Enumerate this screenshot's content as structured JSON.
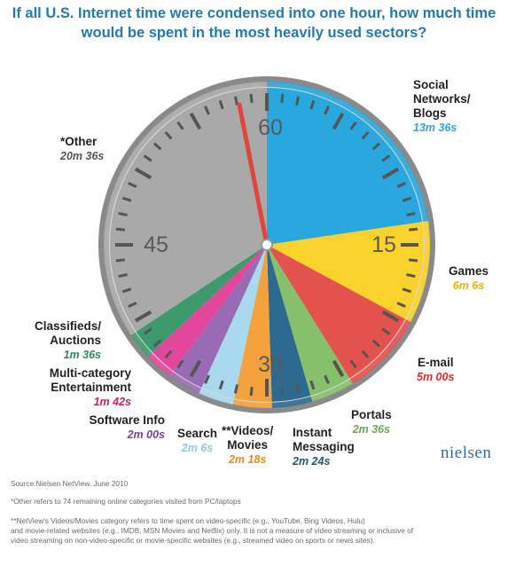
{
  "title_line1": "If all U.S. Internet time were condensed into one hour, how much time",
  "title_line2": "would be spent in the most heavily used sectors?",
  "chart_data": {
    "type": "pie",
    "unit": "minutes",
    "dial_labels": [
      "60",
      "15",
      "30",
      "45"
    ],
    "slices": [
      {
        "name": "Social Networks/ Blogs",
        "value": 13.6,
        "value_label": "13m 36s",
        "color": "#29a8e0"
      },
      {
        "name": "Games",
        "value": 6.1,
        "value_label": "6m 6s",
        "color": "#f9d32b"
      },
      {
        "name": "E-mail",
        "value": 5.0,
        "value_label": "5m 00s",
        "color": "#e4524e"
      },
      {
        "name": "Portals",
        "value": 2.6,
        "value_label": "2m 36s",
        "color": "#86c06a"
      },
      {
        "name": "Instant Messaging",
        "value": 2.4,
        "value_label": "2m 24s",
        "color": "#2c6b8f"
      },
      {
        "name": "**Videos/ Movies",
        "value": 2.3,
        "value_label": "2m 18s",
        "color": "#f4a23d"
      },
      {
        "name": "Search",
        "value": 2.1,
        "value_label": "2m 6s",
        "color": "#a9d9ee"
      },
      {
        "name": "Software Info",
        "value": 2.0,
        "value_label": "2m 00s",
        "color": "#9a6bb5"
      },
      {
        "name": "Multi-category Entertainment",
        "value": 1.7,
        "value_label": "1m 42s",
        "color": "#e3479b"
      },
      {
        "name": "Classifieds/ Auctions",
        "value": 1.6,
        "value_label": "1m 36s",
        "color": "#3d9a6c"
      },
      {
        "name": "*Other",
        "value": 20.6,
        "value_label": "20m 36s",
        "color": "#a9a9a9"
      }
    ]
  },
  "labels": {
    "social_1": "Social",
    "social_2": "Networks/",
    "social_3": "Blogs",
    "social_val": "13m 36s",
    "games": "Games",
    "games_val": "6m 6s",
    "email": "E-mail",
    "email_val": "5m 00s",
    "portals": "Portals",
    "portals_val": "2m 36s",
    "im_1": "Instant",
    "im_2": "Messaging",
    "im_val": "2m 24s",
    "videos_1": "**Videos/",
    "videos_2": "Movies",
    "videos_val": "2m 18s",
    "search": "Search",
    "search_val": "2m 6s",
    "software": "Software Info",
    "software_val": "2m 00s",
    "multi_1": "Multi-category",
    "multi_2": "Entertainment",
    "multi_val": "1m 42s",
    "class_1": "Classifieds/",
    "class_2": "Auctions",
    "class_val": "1m 36s",
    "other": "*Other",
    "other_val": "20m 36s"
  },
  "colors": {
    "social": "#29a8e0",
    "games": "#e9b400",
    "email": "#d62f2c",
    "portals": "#6aa84f",
    "im": "#1d5578",
    "videos": "#e68a1a",
    "search": "#8ec8e3",
    "software": "#7b3f98",
    "multi": "#c0246f",
    "class": "#2e8b57",
    "other": "#555555",
    "title": "#1f7bb0"
  },
  "source": "Source:Nielsen NetView. June 2010",
  "note_other": "*Other refers to 74 remaining online categories visited from PC/laptops",
  "note_videos_1": "**NetView's Videos/Movies category refers to time spent on video-specific (e.g., YouTube, Bing Videos, Hulu)",
  "note_videos_2": "and movie-related websites (e.g., IMDB, MSN Movies and Netflix) only. It is not a measure of video streaming or inclusive of",
  "note_videos_3": "video streaming on non-video-specific or movie-specific websites (e.g., streamed video on sports or news sites).",
  "logo": "nielsen"
}
